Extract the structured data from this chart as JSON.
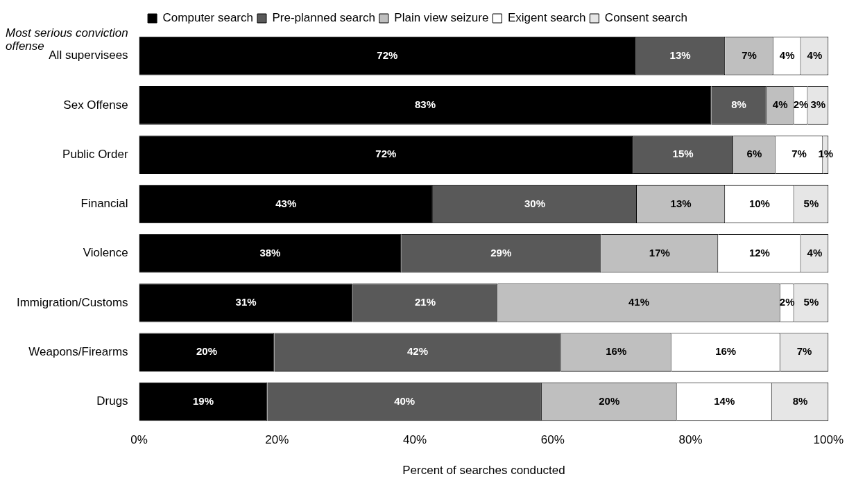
{
  "chart_data": {
    "type": "bar",
    "orientation": "horizontal",
    "stacked": true,
    "ylabel": "Most serious conviction offense",
    "xlabel": "Percent of searches conducted",
    "categories": [
      "All supervisees",
      "Sex Offense",
      "Public Order",
      "Financial",
      "Violence",
      "Immigration/Customs",
      "Weapons/Firearms",
      "Drugs"
    ],
    "series": [
      {
        "name": "Computer search",
        "color": "#000000",
        "values": [
          72,
          83,
          71.6,
          42.6,
          38,
          31,
          19.6,
          18.6
        ],
        "value_labels": [
          "72%",
          "83%",
          "72%",
          "43%",
          "38%",
          "31%",
          "20%",
          "19%"
        ]
      },
      {
        "name": "Pre-planned search",
        "color": "#595959",
        "values": [
          13,
          8,
          14.6,
          29.6,
          29,
          21,
          41.6,
          39.8
        ],
        "value_labels": [
          "13%",
          "8%",
          "15%",
          "30%",
          "29%",
          "21%",
          "42%",
          "40%"
        ]
      },
      {
        "name": "Plain view seizure",
        "color": "#bfbfbf",
        "values": [
          7,
          4,
          6.1,
          12.8,
          17,
          41,
          16,
          19.6
        ],
        "value_labels": [
          "7%",
          "4%",
          "6%",
          "13%",
          "17%",
          "41%",
          "16%",
          "20%"
        ]
      },
      {
        "name": "Exigent search",
        "color": "#ffffff",
        "values": [
          4,
          2,
          6.9,
          10,
          12,
          2,
          15.8,
          13.8
        ],
        "value_labels": [
          "4%",
          "2%",
          "7%",
          "10%",
          "12%",
          "2%",
          "16%",
          "14%"
        ]
      },
      {
        "name": "Consent search",
        "color": "#e6e6e6",
        "values": [
          4,
          3,
          0.8,
          5,
          4,
          5,
          7,
          8.2
        ],
        "value_labels": [
          "4%",
          "3%",
          "1%",
          "5%",
          "4%",
          "5%",
          "7%",
          "8%"
        ]
      }
    ],
    "xlim": [
      0,
      100
    ],
    "xticks": [
      {
        "value": 0,
        "label": "0%"
      },
      {
        "value": 20,
        "label": "20%"
      },
      {
        "value": 40,
        "label": "40%"
      },
      {
        "value": 60,
        "label": "60%"
      },
      {
        "value": 80,
        "label": "80%"
      },
      {
        "value": 100,
        "label": "100%"
      }
    ],
    "grid": false,
    "legend": "top"
  }
}
